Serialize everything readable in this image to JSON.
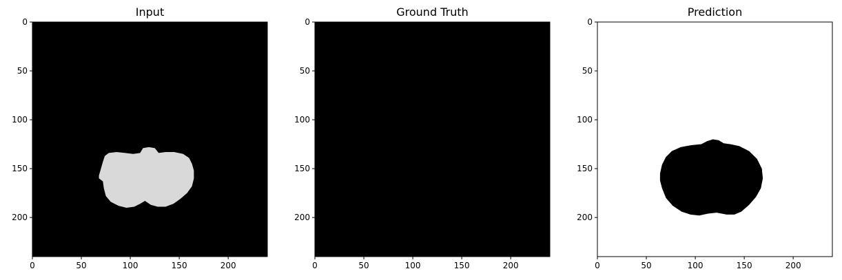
{
  "chart_data": [
    {
      "type": "heatmap",
      "title": "Input",
      "xlim": [
        0,
        240
      ],
      "ylim": [
        240,
        0
      ],
      "xticks": [
        0,
        50,
        100,
        150,
        200
      ],
      "yticks": [
        0,
        50,
        100,
        150,
        200
      ],
      "background": "#000000",
      "region": {
        "color": "#d9d9d9",
        "outline": [
          [
            68,
            157
          ],
          [
            70,
            150
          ],
          [
            72,
            143
          ],
          [
            74,
            137
          ],
          [
            78,
            134
          ],
          [
            86,
            133
          ],
          [
            95,
            134
          ],
          [
            103,
            135
          ],
          [
            110,
            134
          ],
          [
            113,
            129
          ],
          [
            119,
            128
          ],
          [
            125,
            129
          ],
          [
            129,
            134
          ],
          [
            136,
            133
          ],
          [
            145,
            133
          ],
          [
            154,
            135
          ],
          [
            160,
            139
          ],
          [
            163,
            145
          ],
          [
            165,
            152
          ],
          [
            165,
            160
          ],
          [
            163,
            168
          ],
          [
            158,
            175
          ],
          [
            151,
            181
          ],
          [
            144,
            186
          ],
          [
            136,
            189
          ],
          [
            128,
            189
          ],
          [
            121,
            187
          ],
          [
            115,
            183
          ],
          [
            110,
            186
          ],
          [
            104,
            189
          ],
          [
            96,
            190
          ],
          [
            88,
            188
          ],
          [
            80,
            184
          ],
          [
            75,
            178
          ],
          [
            73,
            170
          ],
          [
            72,
            163
          ],
          [
            68,
            160
          ]
        ]
      }
    },
    {
      "type": "heatmap",
      "title": "Ground Truth",
      "xlim": [
        0,
        240
      ],
      "ylim": [
        240,
        0
      ],
      "xticks": [
        0,
        50,
        100,
        150,
        200
      ],
      "yticks": [
        0,
        50,
        100,
        150,
        200
      ],
      "background": "#000000"
    },
    {
      "type": "heatmap",
      "title": "Prediction",
      "xlim": [
        0,
        240
      ],
      "ylim": [
        240,
        0
      ],
      "xticks": [
        0,
        50,
        100,
        150,
        200
      ],
      "yticks": [
        0,
        50,
        100,
        150,
        200
      ],
      "background": "#ffffff",
      "region": {
        "color": "#000000",
        "outline": [
          [
            64,
            155
          ],
          [
            66,
            146
          ],
          [
            70,
            138
          ],
          [
            76,
            132
          ],
          [
            85,
            128
          ],
          [
            96,
            126
          ],
          [
            106,
            125
          ],
          [
            112,
            122
          ],
          [
            118,
            120
          ],
          [
            124,
            121
          ],
          [
            129,
            124
          ],
          [
            136,
            125
          ],
          [
            145,
            127
          ],
          [
            155,
            132
          ],
          [
            163,
            140
          ],
          [
            168,
            150
          ],
          [
            169,
            160
          ],
          [
            167,
            170
          ],
          [
            162,
            179
          ],
          [
            155,
            187
          ],
          [
            147,
            194
          ],
          [
            140,
            197
          ],
          [
            132,
            197
          ],
          [
            122,
            195
          ],
          [
            113,
            196
          ],
          [
            104,
            198
          ],
          [
            95,
            197
          ],
          [
            86,
            194
          ],
          [
            77,
            188
          ],
          [
            70,
            180
          ],
          [
            66,
            170
          ],
          [
            64,
            162
          ]
        ]
      }
    }
  ]
}
